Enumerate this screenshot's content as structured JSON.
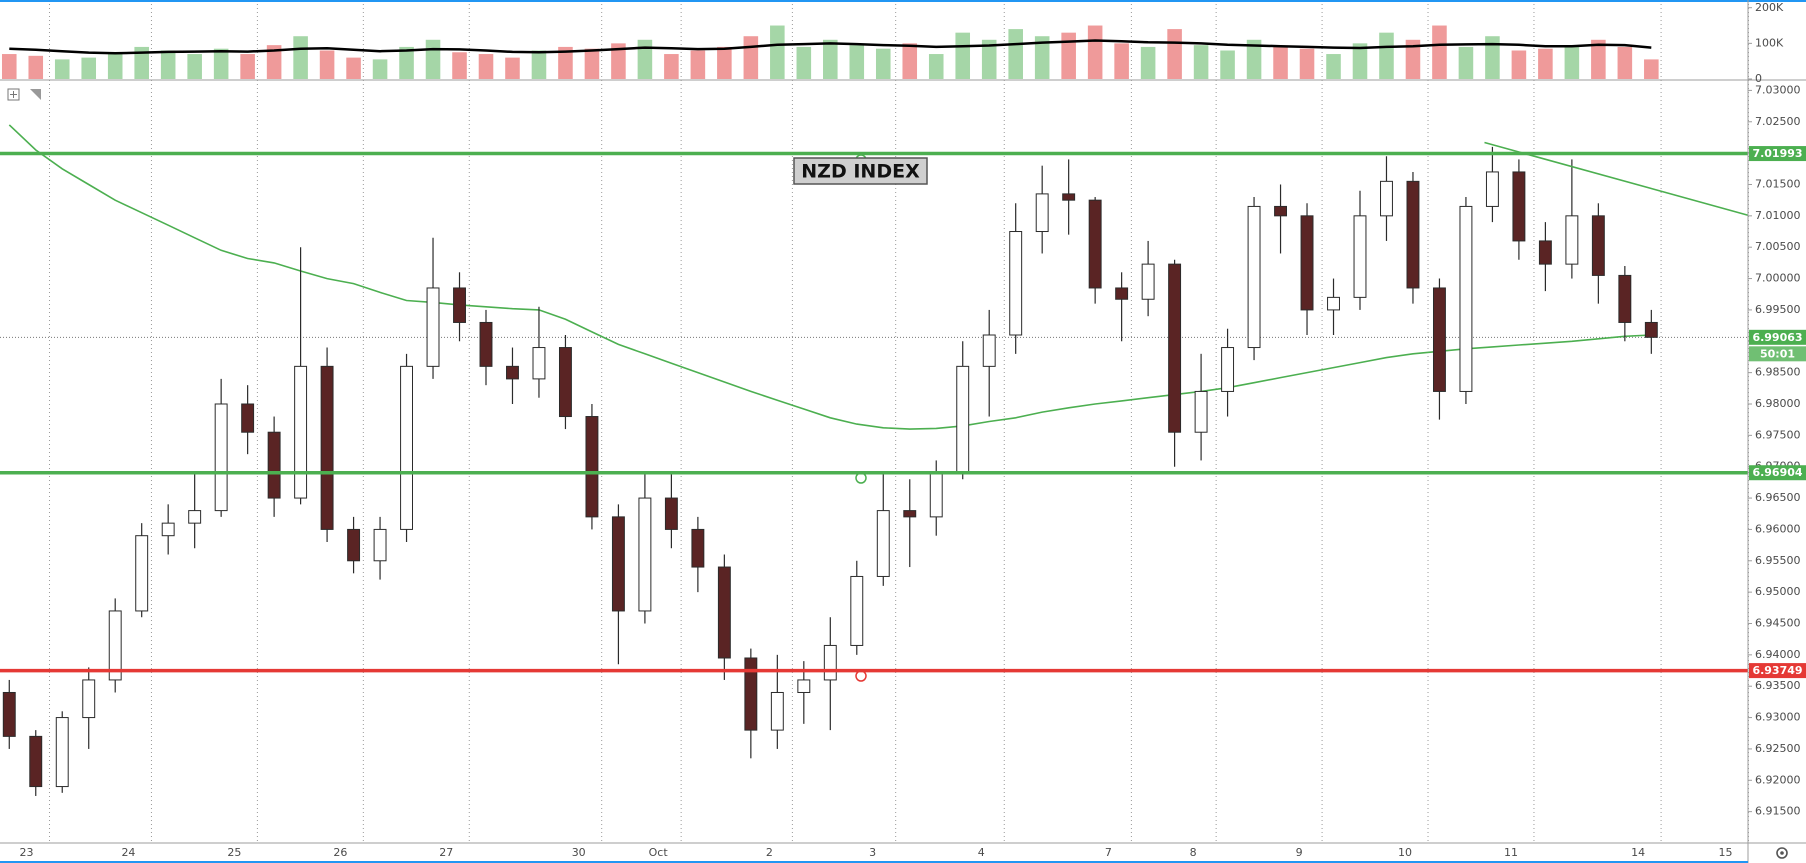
{
  "chart_data": {
    "type": "candlestick",
    "title": "NZD INDEX",
    "open": [
      6.934,
      6.927,
      6.919,
      6.93,
      6.936,
      6.947,
      6.959,
      6.961,
      6.963,
      6.98,
      6.9755,
      6.965,
      6.986,
      6.96,
      6.955,
      6.96,
      6.986,
      6.9985,
      6.993,
      6.986,
      6.984,
      6.989,
      6.978,
      6.962,
      6.947,
      6.965,
      6.96,
      6.954,
      6.9395,
      6.928,
      6.934,
      6.936,
      6.9415,
      6.9525,
      6.963,
      6.962,
      6.969,
      6.986,
      6.991,
      7.0075,
      7.0135,
      7.0125,
      6.9985,
      6.9967,
      7.0023,
      6.9755,
      6.982,
      6.989,
      7.0115,
      7.01,
      6.995,
      6.997,
      7.01,
      7.0155,
      6.9985,
      6.982,
      7.0115,
      7.017,
      7.006,
      7.0023,
      7.01,
      7.0005,
      6.993
    ],
    "high": [
      6.936,
      6.928,
      6.931,
      6.938,
      6.949,
      6.961,
      6.964,
      6.969,
      6.984,
      6.983,
      6.978,
      7.005,
      6.989,
      6.962,
      6.962,
      6.988,
      7.0065,
      7.001,
      6.995,
      6.989,
      6.9955,
      6.991,
      6.98,
      6.964,
      6.969,
      6.969,
      6.962,
      6.956,
      6.941,
      6.94,
      6.939,
      6.946,
      6.955,
      6.969,
      6.968,
      6.971,
      6.99,
      6.995,
      7.012,
      7.018,
      7.019,
      7.013,
      7.001,
      7.006,
      7.003,
      6.988,
      6.992,
      7.013,
      7.015,
      7.012,
      7.0,
      7.014,
      7.0195,
      7.017,
      7.0,
      7.013,
      7.021,
      7.019,
      7.009,
      7.019,
      7.012,
      7.002,
      6.995
    ],
    "low": [
      6.925,
      6.9175,
      6.918,
      6.925,
      6.934,
      6.946,
      6.956,
      6.957,
      6.962,
      6.972,
      6.962,
      6.964,
      6.958,
      6.953,
      6.952,
      6.958,
      6.984,
      6.99,
      6.983,
      6.98,
      6.981,
      6.976,
      6.96,
      6.9385,
      6.945,
      6.957,
      6.95,
      6.936,
      6.9235,
      6.925,
      6.929,
      6.928,
      6.94,
      6.951,
      6.954,
      6.959,
      6.968,
      6.978,
      6.988,
      7.004,
      7.007,
      6.996,
      6.99,
      6.994,
      6.97,
      6.971,
      6.978,
      6.987,
      7.004,
      6.991,
      6.991,
      6.995,
      7.006,
      6.996,
      6.9775,
      6.98,
      7.009,
      7.003,
      6.998,
      7.0,
      6.996,
      6.99,
      6.988
    ],
    "close": [
      6.927,
      6.919,
      6.93,
      6.936,
      6.947,
      6.959,
      6.961,
      6.963,
      6.98,
      6.9755,
      6.965,
      6.986,
      6.96,
      6.955,
      6.96,
      6.986,
      6.9985,
      6.993,
      6.986,
      6.984,
      6.989,
      6.978,
      6.962,
      6.947,
      6.965,
      6.96,
      6.954,
      6.9395,
      6.928,
      6.934,
      6.936,
      6.9415,
      6.9525,
      6.963,
      6.962,
      6.969,
      6.986,
      6.991,
      7.0075,
      7.0135,
      7.0125,
      6.9985,
      6.9967,
      7.0023,
      6.9755,
      6.982,
      6.989,
      7.0115,
      7.01,
      6.995,
      6.997,
      7.01,
      7.0155,
      6.9985,
      6.982,
      7.0115,
      7.017,
      7.006,
      7.0023,
      7.01,
      7.0005,
      6.993,
      6.99063
    ],
    "up_color": "#ffffff",
    "down_color": "#5a2424",
    "wick_color": "#2b2b2b",
    "sma": {
      "color": "#4caf50",
      "values": [
        7.0245,
        7.0205,
        7.0175,
        7.015,
        7.0125,
        7.0105,
        7.0085,
        7.0065,
        7.0045,
        7.0032,
        7.0025,
        7.0012,
        7.0,
        6.9992,
        6.9978,
        6.9965,
        6.9962,
        6.9958,
        6.9955,
        6.9952,
        6.995,
        6.9935,
        6.9915,
        6.9895,
        6.988,
        6.9865,
        6.985,
        6.9835,
        6.982,
        6.9806,
        6.9792,
        6.9778,
        6.9768,
        6.9762,
        6.976,
        6.9761,
        6.9765,
        6.9772,
        6.9778,
        6.9787,
        6.9794,
        6.98,
        6.9805,
        6.981,
        6.9815,
        6.982,
        6.9826,
        6.9834,
        6.9842,
        6.985,
        6.9858,
        6.9866,
        6.9874,
        6.988,
        6.9884,
        6.9888,
        6.9891,
        6.9894,
        6.9897,
        6.99,
        6.9904,
        6.9908,
        6.991
      ]
    },
    "trendline": {
      "color": "#4caf50",
      "x": [
        55.7,
        65.65
      ],
      "y": [
        7.0217,
        7.0101
      ]
    },
    "levels": [
      {
        "value": 7.01993,
        "color": "#4caf50"
      },
      {
        "value": 6.96904,
        "color": "#4caf50"
      },
      {
        "value": 6.93749,
        "color": "#e53935"
      }
    ],
    "current_price": {
      "value": 6.99063,
      "color": "#4caf50",
      "countdown": "50:01"
    },
    "ylim": [
      6.91,
      7.0315
    ],
    "yticks": [
      {
        "value": 6.915,
        "label": "6.91500"
      },
      {
        "value": 6.92,
        "label": "6.92000"
      },
      {
        "value": 6.925,
        "label": "6.92500"
      },
      {
        "value": 6.93,
        "label": "6.93000"
      },
      {
        "value": 6.935,
        "label": "6.93500"
      },
      {
        "value": 6.94,
        "label": "6.94000"
      },
      {
        "value": 6.945,
        "label": "6.94500"
      },
      {
        "value": 6.95,
        "label": "6.95000"
      },
      {
        "value": 6.955,
        "label": "6.95500"
      },
      {
        "value": 6.96,
        "label": "6.96000"
      },
      {
        "value": 6.965,
        "label": "6.96500"
      },
      {
        "value": 6.97,
        "label": "6.97000"
      },
      {
        "value": 6.975,
        "label": "6.97500"
      },
      {
        "value": 6.98,
        "label": "6.98000"
      },
      {
        "value": 6.985,
        "label": "6.98500"
      },
      {
        "value": 6.99,
        "label": "6.99000"
      },
      {
        "value": 6.995,
        "label": "6.99500"
      },
      {
        "value": 7.0,
        "label": "7.00000"
      },
      {
        "value": 7.005,
        "label": "7.00500"
      },
      {
        "value": 7.01,
        "label": "7.01000"
      },
      {
        "value": 7.015,
        "label": "7.01500"
      },
      {
        "value": 7.02,
        "label": "7.02000"
      },
      {
        "value": 7.025,
        "label": "7.02500"
      },
      {
        "value": 7.03,
        "label": "7.03000"
      }
    ],
    "xlim": [
      -0.35,
      65.65
    ],
    "xticks": [
      {
        "value": 0.65,
        "label": "23"
      },
      {
        "value": 4.5,
        "label": "24"
      },
      {
        "value": 8.5,
        "label": "25"
      },
      {
        "value": 12.5,
        "label": "26"
      },
      {
        "value": 16.5,
        "label": "27"
      },
      {
        "value": 21.5,
        "label": "30"
      },
      {
        "value": 24.5,
        "label": "Oct"
      },
      {
        "value": 28.7,
        "label": "2"
      },
      {
        "value": 32.6,
        "label": "3"
      },
      {
        "value": 36.7,
        "label": "4"
      },
      {
        "value": 41.5,
        "label": "7"
      },
      {
        "value": 44.7,
        "label": "8"
      },
      {
        "value": 48.7,
        "label": "9"
      },
      {
        "value": 52.7,
        "label": "10"
      },
      {
        "value": 56.7,
        "label": "11"
      },
      {
        "value": 61.5,
        "label": "14"
      },
      {
        "value": 64.8,
        "label": "15"
      }
    ],
    "grid": true,
    "volume": {
      "up_color": "#a5d6a7",
      "down_color": "#ef9a9a",
      "ma_color": "#000000",
      "values": [
        70000,
        65000,
        55000,
        60000,
        75000,
        90000,
        80000,
        70000,
        85000,
        70000,
        95000,
        120000,
        80000,
        60000,
        55000,
        90000,
        110000,
        75000,
        70000,
        60000,
        80000,
        90000,
        85000,
        100000,
        110000,
        70000,
        80000,
        90000,
        120000,
        150000,
        90000,
        110000,
        95000,
        85000,
        100000,
        70000,
        130000,
        110000,
        140000,
        120000,
        130000,
        150000,
        100000,
        90000,
        140000,
        95000,
        80000,
        110000,
        90000,
        85000,
        70000,
        100000,
        130000,
        110000,
        150000,
        90000,
        120000,
        80000,
        85000,
        95000,
        110000,
        90000,
        55000
      ],
      "ma": [
        85000,
        82000,
        78000,
        74000,
        72000,
        74000,
        76000,
        77000,
        78000,
        77000,
        80000,
        85000,
        86000,
        82000,
        78000,
        80000,
        84000,
        83000,
        80000,
        76000,
        75000,
        77000,
        80000,
        84000,
        88000,
        86000,
        84000,
        85000,
        90000,
        96000,
        98000,
        100000,
        98000,
        95000,
        93000,
        90000,
        92000,
        94000,
        98000,
        102000,
        105000,
        108000,
        106000,
        103000,
        102000,
        100000,
        96000,
        94000,
        92000,
        90000,
        88000,
        87000,
        90000,
        92000,
        96000,
        97000,
        98000,
        96000,
        92000,
        92000,
        96000,
        95000,
        88000
      ],
      "ylim": [
        0,
        216000
      ],
      "yticks": [
        0,
        {
          "value": 100000,
          "label": "100K"
        },
        {
          "value": 200000,
          "label": "200K"
        }
      ]
    }
  }
}
